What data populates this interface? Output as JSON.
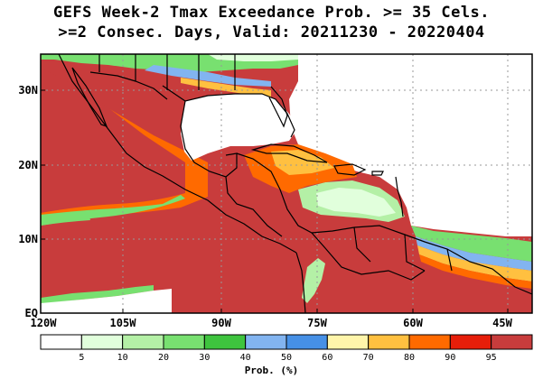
{
  "title_line1": "GEFS Week-2 Tmax Exceedance Prob. >= 35 Cels.",
  "title_line2": ">=2 Consec. Days, Valid: 20211230 - 20220404",
  "lat_labels": [
    "30N",
    "20N",
    "10N",
    "EQ"
  ],
  "lon_labels": [
    "120W",
    "105W",
    "90W",
    "75W",
    "60W",
    "45W"
  ],
  "colorbar": {
    "title": "Prob. (%)",
    "ticks": [
      "5",
      "10",
      "20",
      "30",
      "40",
      "50",
      "60",
      "70",
      "80",
      "90",
      "95"
    ],
    "colors": [
      "#ffffff",
      "#e1ffdc",
      "#b4f0a6",
      "#78e070",
      "#3ec43e",
      "#82b4f0",
      "#4690e6",
      "#fff5aa",
      "#ffc040",
      "#ff6a00",
      "#e61e0a",
      "#c83c3c"
    ]
  },
  "colors": {
    "high_prob": "#c83c3c",
    "ocean_low": "#ffffff",
    "coast": "#000000",
    "grid": "#999999"
  }
}
